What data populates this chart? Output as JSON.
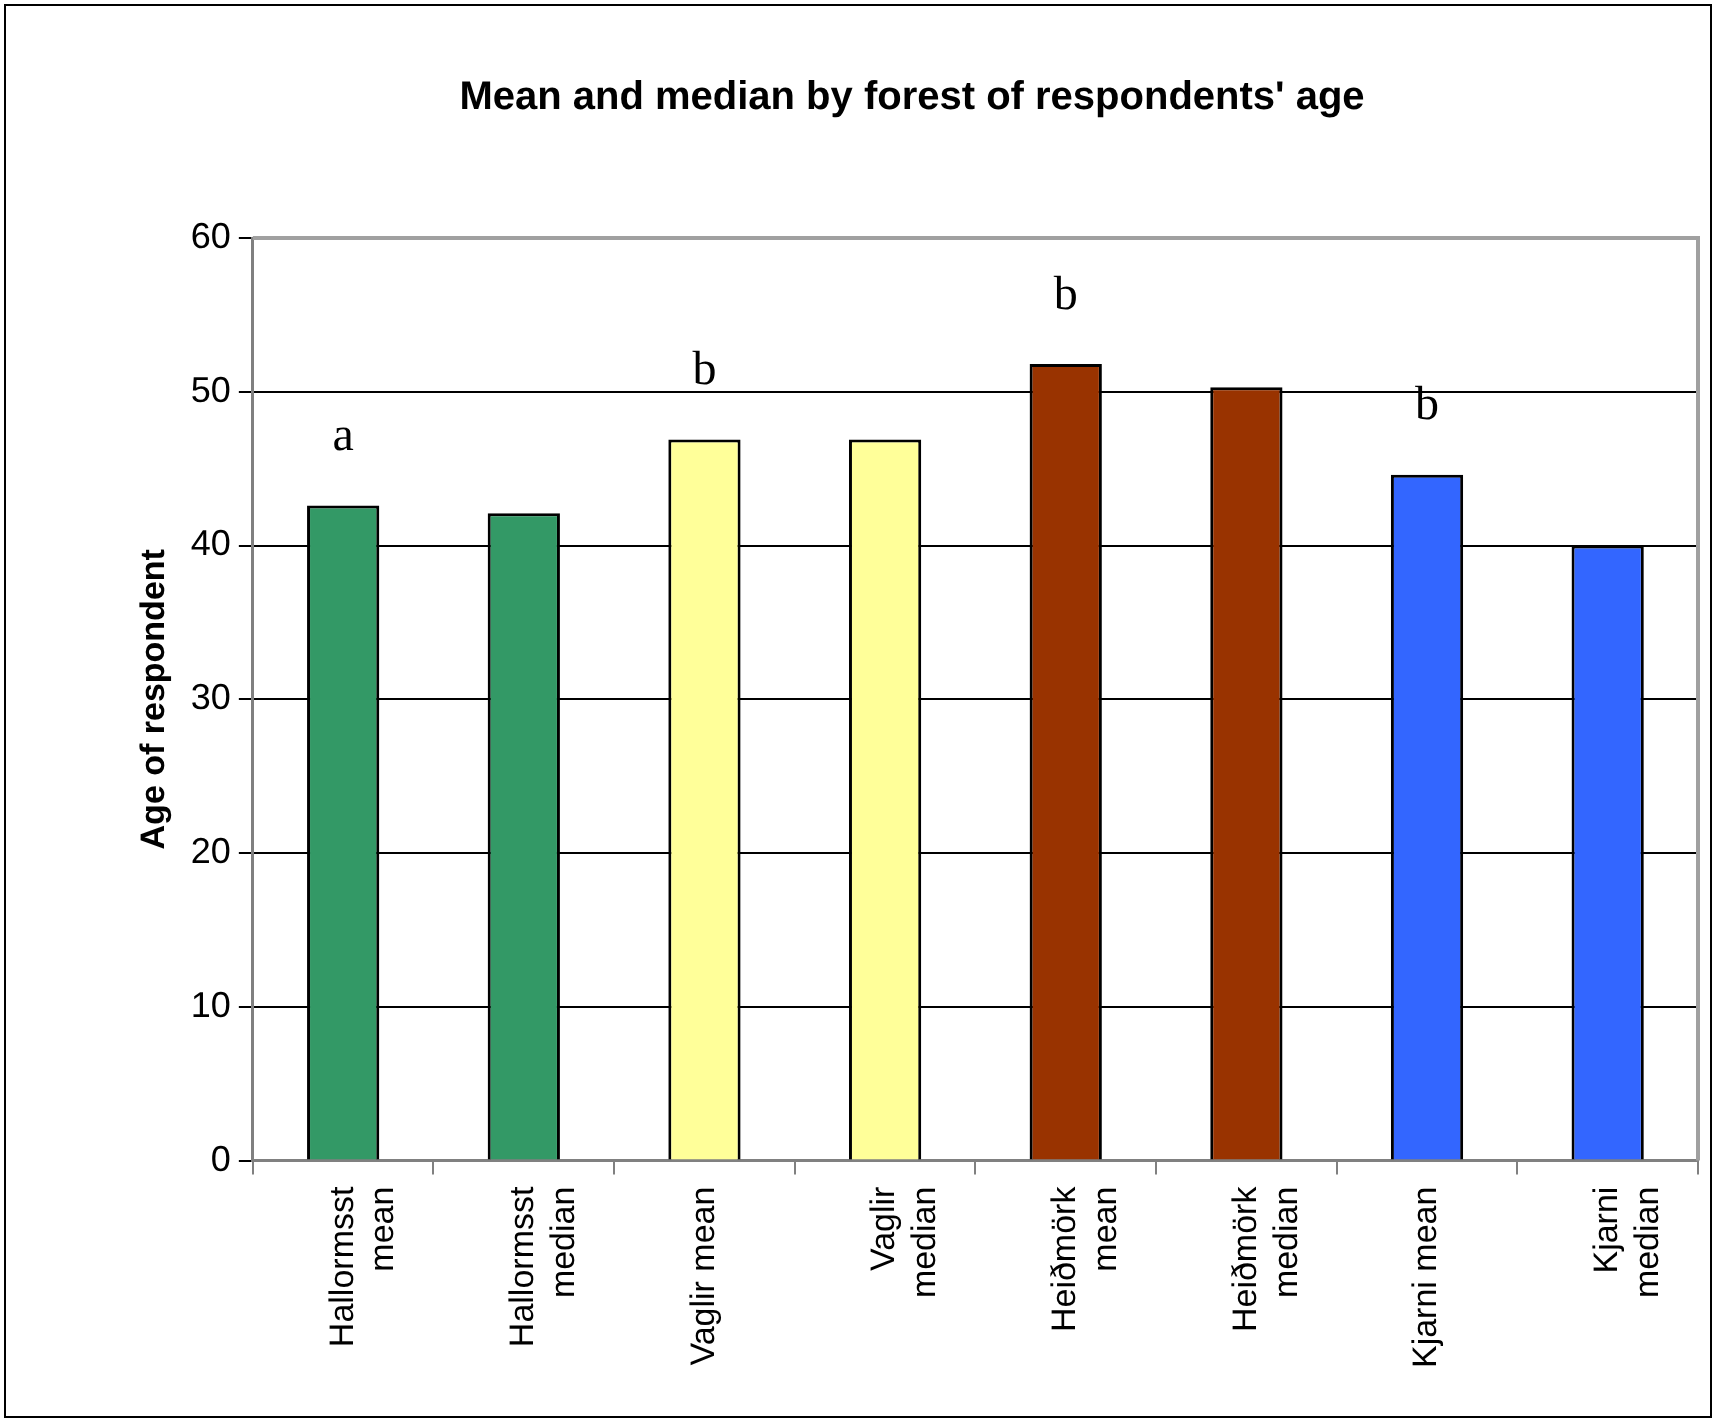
{
  "chart_data": {
    "type": "bar",
    "title": "Mean and median by forest of respondents' age",
    "ylabel": "Age of respondent",
    "categories": [
      "Hallormsst mean",
      "Hallormsst median",
      "Vaglir mean",
      "Vaglir median",
      "Heiðmörk mean",
      "Heiðmörk median",
      "Kjarni mean",
      "Kjarni median"
    ],
    "values": [
      42.6,
      42.1,
      46.9,
      46.9,
      51.8,
      50.3,
      44.6,
      40.0
    ],
    "colors": [
      "#339966",
      "#339966",
      "#ffff99",
      "#ffff99",
      "#993300",
      "#993300",
      "#3366ff",
      "#3366ff"
    ],
    "value_labels": [
      "a",
      null,
      "b",
      null,
      "b",
      null,
      "b",
      null
    ],
    "ylim": [
      0,
      60
    ],
    "yticks": [
      0,
      10,
      20,
      30,
      40,
      50,
      60
    ],
    "grid": "y",
    "legend": false
  }
}
